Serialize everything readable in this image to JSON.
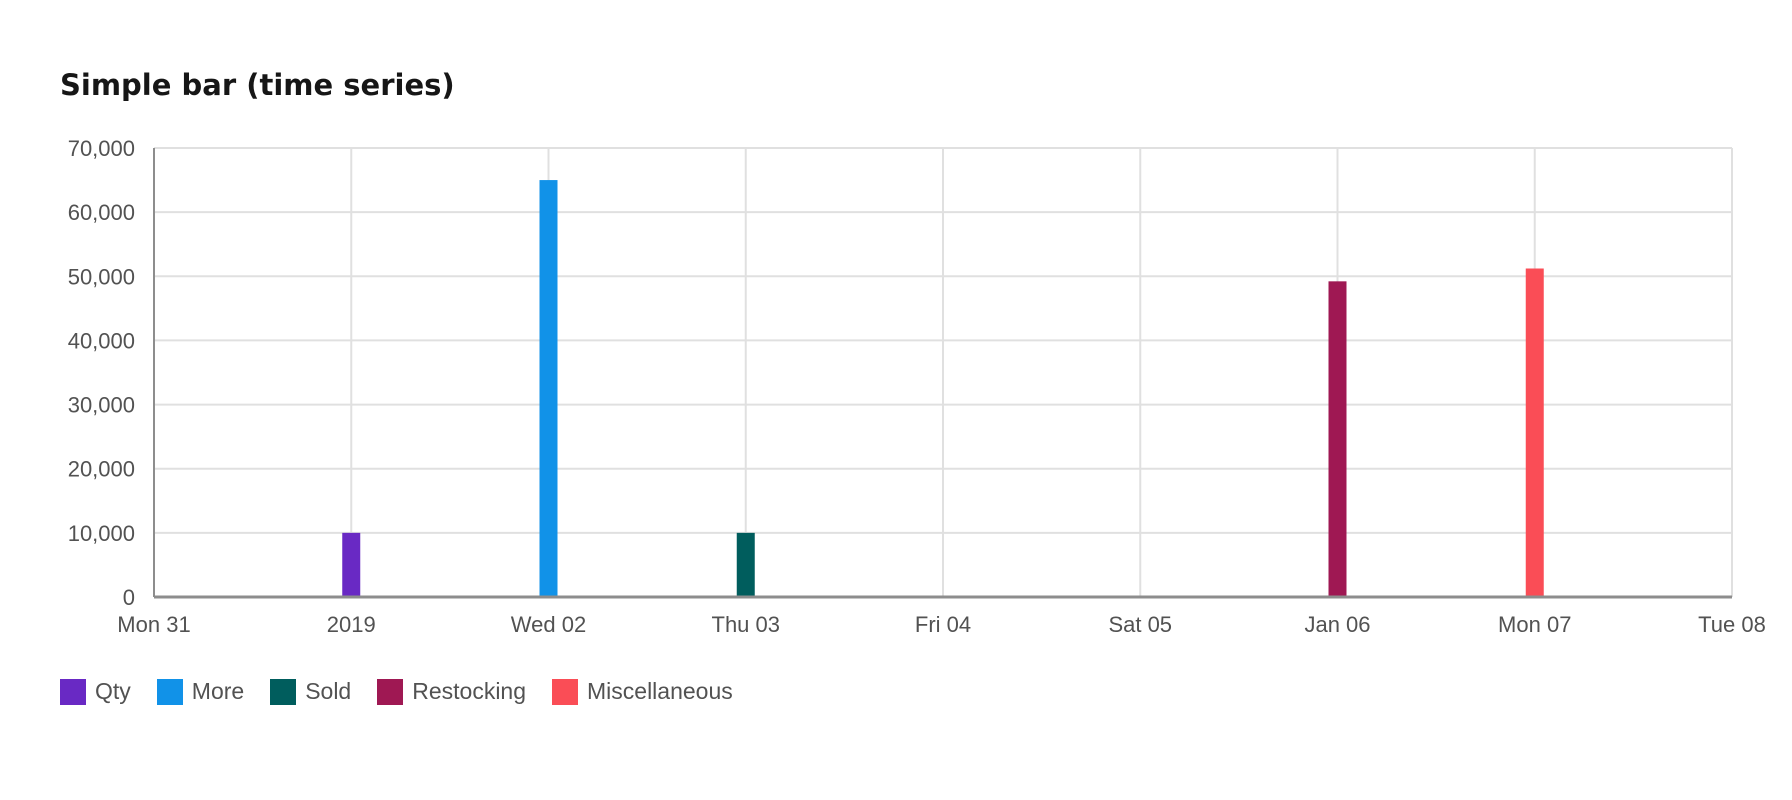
{
  "chart_data": {
    "type": "bar",
    "title": "Simple bar (time series)",
    "xlabel": "",
    "ylabel": "",
    "x_tick_labels": [
      "Mon 31",
      "2019",
      "Wed 02",
      "Thu 03",
      "Fri 04",
      "Sat 05",
      "Jan 06",
      "Mon 07",
      "Tue 08"
    ],
    "x_range": [
      "2018-12-31",
      "2019-01-08"
    ],
    "ylim": [
      0,
      70000
    ],
    "y_ticks": [
      0,
      10000,
      20000,
      30000,
      40000,
      50000,
      60000,
      70000
    ],
    "y_tick_labels": [
      "0",
      "10,000",
      "20,000",
      "30,000",
      "40,000",
      "50,000",
      "60,000",
      "70,000"
    ],
    "grid": true,
    "legend_position": "bottom-left",
    "series": [
      {
        "name": "Qty",
        "color": "#6929c4",
        "points": [
          {
            "x": "2019-01-01",
            "y": 10000
          }
        ]
      },
      {
        "name": "More",
        "color": "#1192e8",
        "points": [
          {
            "x": "2019-01-02",
            "y": 65000
          }
        ]
      },
      {
        "name": "Sold",
        "color": "#005d5d",
        "points": [
          {
            "x": "2019-01-03",
            "y": 10000
          }
        ]
      },
      {
        "name": "Restocking",
        "color": "#9f1853",
        "points": [
          {
            "x": "2019-01-06",
            "y": 49213
          }
        ]
      },
      {
        "name": "Miscellaneous",
        "color": "#fa4d56",
        "points": [
          {
            "x": "2019-01-07",
            "y": 51213
          }
        ]
      }
    ]
  }
}
